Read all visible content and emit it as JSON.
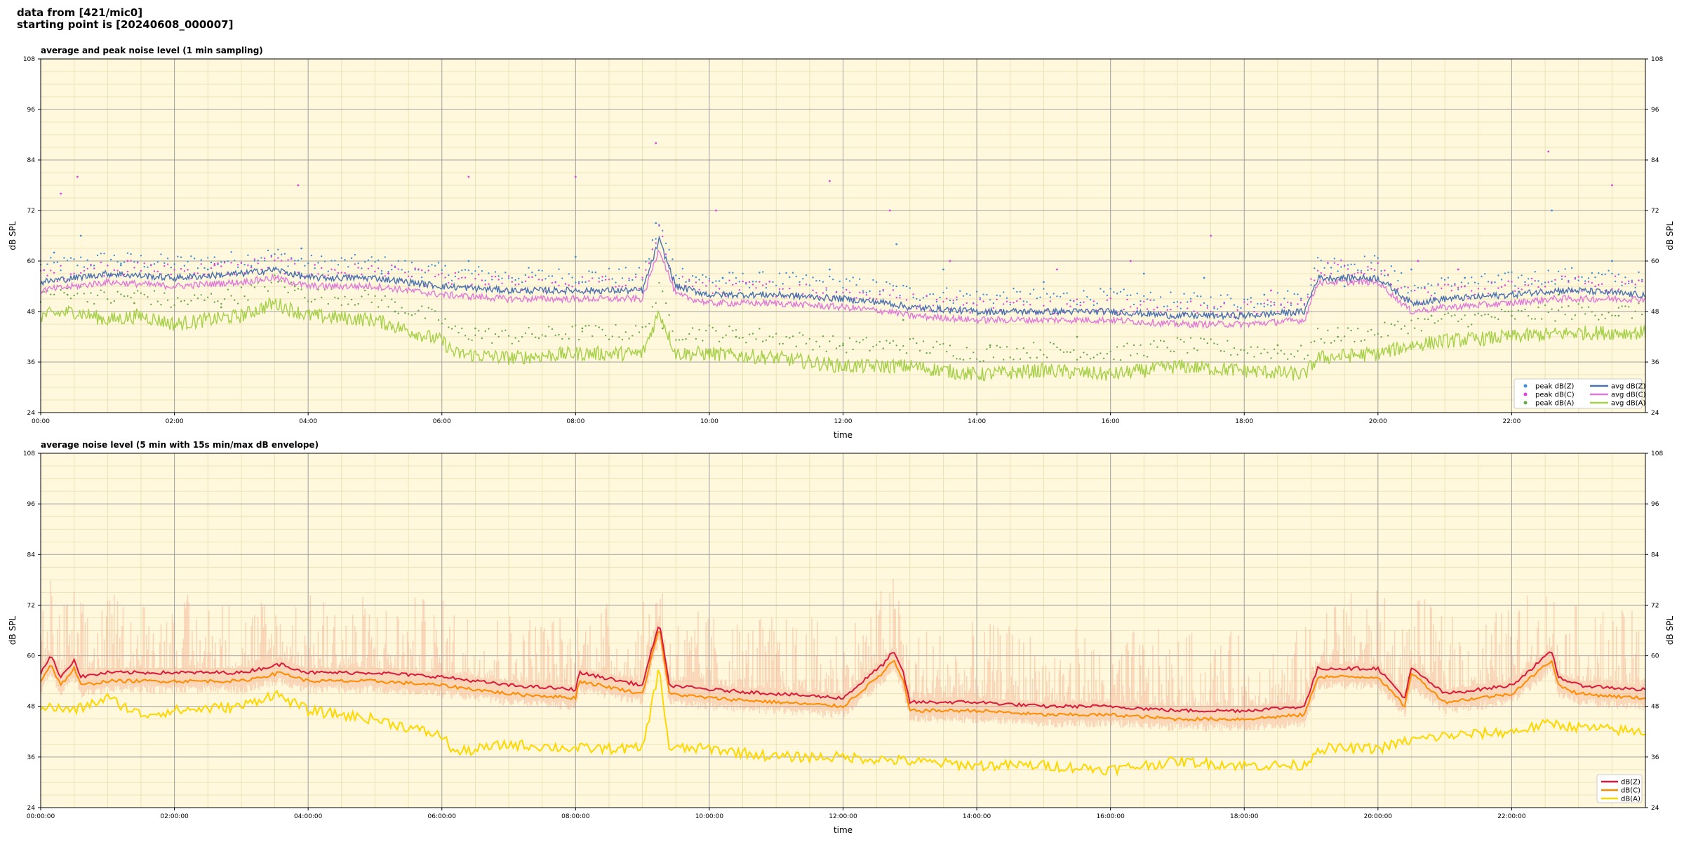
{
  "header": {
    "line1": "data from [421/mic0]",
    "line2": "starting point is [20240608_000007]"
  },
  "colors": {
    "plot_bg": "#fff8dc",
    "grid": "#a0a0a0",
    "peak_z": "#3d8fd6",
    "peak_c": "#e040e0",
    "peak_a": "#6aa84f",
    "avg_z": "#4a72b0",
    "avg_c": "#e07ad8",
    "avg_a": "#a6d049",
    "db_z": "#d81b3c",
    "db_c": "#ff8c00",
    "db_a": "#ffd700",
    "envelope": "#f4a98a"
  },
  "chart_data": [
    {
      "type": "line",
      "title": "average and peak noise level (1 min sampling)",
      "xlabel": "time",
      "ylabel": "dB SPL",
      "ylabel_right": "dB SPL",
      "ylim": [
        24,
        108
      ],
      "xlim_hours": [
        0,
        24
      ],
      "yticks": [
        "24",
        "36",
        "48",
        "60",
        "72",
        "84",
        "96",
        "108"
      ],
      "xticks": [
        "00:00",
        "02:00",
        "04:00",
        "06:00",
        "08:00",
        "10:00",
        "12:00",
        "14:00",
        "16:00",
        "18:00",
        "20:00",
        "22:00"
      ],
      "grid": true,
      "legend_position": "lower-right",
      "legend": [
        "peak dB(Z)",
        "peak dB(C)",
        "peak dB(A)",
        "avg dB(Z)",
        "avg dB(C)",
        "avg dB(A)"
      ],
      "series": [
        {
          "name": "avg dB(Z)",
          "x_hours": [
            0,
            0.5,
            1,
            2,
            3,
            3.5,
            4,
            5,
            6,
            7,
            8,
            9,
            9.25,
            9.5,
            10,
            11,
            12,
            12.7,
            13,
            14,
            15,
            16,
            17,
            18,
            18.9,
            19.1,
            20,
            20.5,
            21,
            22,
            22.6,
            23,
            23.9
          ],
          "values": [
            55,
            56,
            57,
            56,
            57,
            58,
            56,
            56,
            54,
            53,
            53,
            53,
            65,
            54,
            52,
            52,
            51,
            50,
            49,
            48,
            48,
            48,
            47,
            47,
            48,
            56,
            56,
            50,
            51,
            52,
            53,
            53,
            52
          ]
        },
        {
          "name": "avg dB(C)",
          "x_hours": [
            0,
            0.5,
            1,
            2,
            3,
            3.5,
            4,
            5,
            6,
            7,
            8,
            9,
            9.25,
            9.5,
            10,
            11,
            12,
            12.7,
            13,
            14,
            15,
            16,
            17,
            18,
            18.9,
            19.1,
            20,
            20.5,
            21,
            22,
            22.6,
            23,
            23.9
          ],
          "values": [
            53,
            54,
            55,
            54,
            55,
            56,
            54,
            54,
            52,
            51,
            51,
            51,
            63,
            52,
            50,
            50,
            49,
            48,
            47,
            46,
            46,
            46,
            45,
            45,
            46,
            55,
            55,
            48,
            49,
            50,
            51,
            51,
            51
          ]
        },
        {
          "name": "avg dB(A)",
          "x_hours": [
            0,
            0.5,
            1,
            1.5,
            2,
            3,
            3.5,
            4,
            5,
            6,
            6.2,
            7,
            8,
            9,
            9.25,
            9.5,
            10,
            11,
            12,
            13,
            14,
            15,
            16,
            17,
            18,
            18.9,
            19.1,
            20,
            20.5,
            21,
            22,
            23,
            23.9
          ],
          "values": [
            47,
            48,
            46,
            47,
            45,
            47,
            50,
            47,
            46,
            41,
            38,
            37,
            38,
            38,
            48,
            38,
            38,
            37,
            35,
            35,
            33,
            34,
            33,
            35,
            34,
            33,
            37,
            38,
            40,
            41,
            42,
            43,
            43
          ]
        },
        {
          "name": "peak dB(Z)",
          "x_hours": [
            0.2,
            0.6,
            1.2,
            2.5,
            3.9,
            5.1,
            6.4,
            8,
            9.2,
            10.2,
            11.8,
            12.8,
            13.5,
            15,
            16.5,
            17.4,
            18.3,
            19.5,
            20.5,
            21.3,
            22.6,
            23.5
          ],
          "values": [
            62,
            66,
            59,
            58,
            63,
            57,
            60,
            61,
            69,
            56,
            58,
            64,
            58,
            55,
            57,
            56,
            52,
            54,
            58,
            56,
            72,
            60
          ]
        },
        {
          "name": "peak dB(C)",
          "x_hours": [
            0.3,
            0.55,
            1.3,
            2.6,
            3.85,
            5.2,
            6.4,
            8,
            9.2,
            10.1,
            11.8,
            12.7,
            13.6,
            15.2,
            16.3,
            17.5,
            18.4,
            19.6,
            20.6,
            21.2,
            22.55,
            23.5
          ],
          "values": [
            76,
            80,
            60,
            59,
            78,
            57,
            80,
            80,
            88,
            72,
            79,
            72,
            60,
            58,
            60,
            66,
            53,
            55,
            60,
            58,
            86,
            78
          ]
        },
        {
          "name": "peak dB(A)",
          "x_hours": [
            0.4,
            1.4,
            2.7,
            3.8,
            5.3,
            6.5,
            8.1,
            9.3,
            10.4,
            12,
            12.9,
            14.2,
            15.5,
            17,
            18.5,
            19.4,
            20.8,
            22,
            22.7,
            23.6
          ],
          "values": [
            52,
            50,
            49,
            54,
            48,
            44,
            44,
            44,
            42,
            40,
            46,
            40,
            42,
            45,
            40,
            42,
            47,
            47,
            52,
            47
          ]
        }
      ]
    },
    {
      "type": "line",
      "title": "average noise level (5 min with 15s min/max dB envelope)",
      "xlabel": "time",
      "ylabel": "dB SPL",
      "ylabel_right": "dB SPL",
      "ylim": [
        24,
        108
      ],
      "xlim_hours": [
        0,
        24
      ],
      "yticks": [
        "24",
        "36",
        "48",
        "60",
        "72",
        "84",
        "96",
        "108"
      ],
      "xticks": [
        "00:00:00",
        "02:00:00",
        "04:00:00",
        "06:00:00",
        "08:00:00",
        "10:00:00",
        "12:00:00",
        "14:00:00",
        "16:00:00",
        "18:00:00",
        "20:00:00",
        "22:00:00"
      ],
      "grid": true,
      "legend_position": "lower-right",
      "legend": [
        "dB(Z)",
        "dB(C)",
        "dB(A)"
      ],
      "series": [
        {
          "name": "dB(Z)",
          "x_hours": [
            0,
            0.15,
            0.3,
            0.5,
            0.6,
            1,
            2,
            3,
            3.6,
            4,
            5,
            6,
            7,
            8,
            8.05,
            9,
            9.25,
            9.4,
            10,
            11,
            12,
            12.6,
            12.75,
            12.9,
            13,
            14,
            15,
            16,
            17,
            18,
            18.9,
            19.1,
            20,
            20.4,
            20.5,
            21,
            22,
            22.6,
            22.7,
            23,
            23.9
          ],
          "values": [
            56,
            60,
            55,
            59,
            55,
            56,
            56,
            56,
            58,
            56,
            56,
            55,
            53,
            52,
            56,
            53,
            68,
            53,
            52,
            51,
            50,
            58,
            61,
            56,
            49,
            49,
            48,
            48,
            47,
            47,
            48,
            57,
            57,
            50,
            57,
            51,
            53,
            61,
            55,
            53,
            52
          ]
        },
        {
          "name": "dB(C)",
          "x_hours": [
            0,
            0.15,
            0.3,
            0.5,
            0.6,
            1,
            2,
            3,
            3.6,
            4,
            5,
            6,
            7,
            8,
            8.05,
            9,
            9.25,
            9.4,
            10,
            11,
            12,
            12.6,
            12.75,
            12.9,
            13,
            14,
            15,
            16,
            17,
            18,
            18.9,
            19.1,
            20,
            20.4,
            20.5,
            21,
            22,
            22.6,
            22.7,
            23,
            23.9
          ],
          "values": [
            54,
            58,
            53,
            57,
            53,
            54,
            54,
            54,
            56,
            54,
            54,
            53,
            51,
            50,
            54,
            51,
            67,
            51,
            50,
            49,
            48,
            56,
            59,
            54,
            47,
            47,
            46,
            46,
            45,
            45,
            46,
            55,
            55,
            48,
            56,
            49,
            51,
            59,
            53,
            51,
            50
          ]
        },
        {
          "name": "dB(A)",
          "x_hours": [
            0,
            0.5,
            1,
            1.5,
            2,
            3,
            3.5,
            4,
            5,
            6,
            6.2,
            7,
            8,
            9,
            9.25,
            9.4,
            10,
            11,
            12,
            13,
            14,
            15,
            16,
            17,
            18,
            18.9,
            19.1,
            20,
            20.5,
            21,
            22,
            22.6,
            23,
            23.9
          ],
          "values": [
            48,
            47,
            50,
            46,
            47,
            48,
            51,
            47,
            45,
            41,
            37,
            39,
            38,
            38,
            57,
            38,
            38,
            36,
            36,
            35,
            34,
            34,
            33,
            35,
            34,
            34,
            38,
            38,
            40,
            41,
            42,
            44,
            43,
            42
          ]
        }
      ]
    }
  ]
}
